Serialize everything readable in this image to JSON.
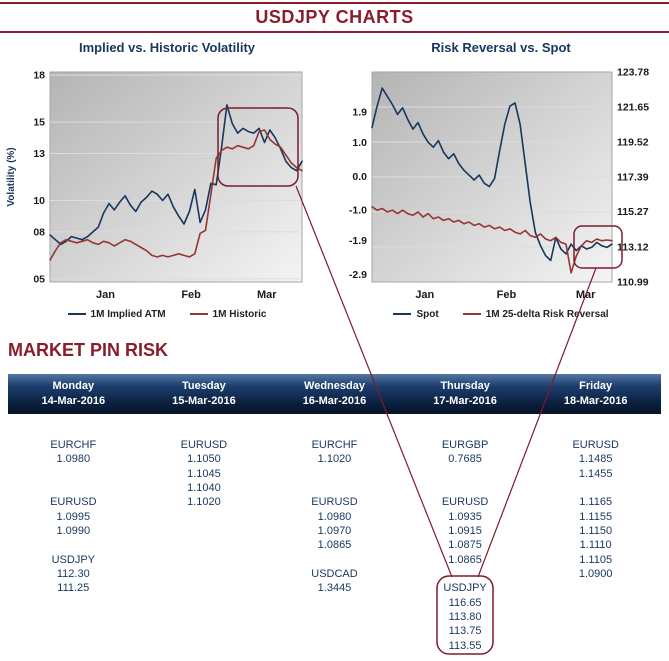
{
  "title": "USDJPY CHARTS",
  "colors": {
    "maroon": "#8a1c2c",
    "navy": "#17375e",
    "line_blue": "#17375e",
    "line_red": "#943634",
    "annotation": "#7d1c2e"
  },
  "chart_data": [
    {
      "type": "line",
      "title": "Implied vs. Historic Volatility",
      "ylabel": "Volatility (%)",
      "xlabel": "",
      "axes": {
        "left": {
          "lim": [
            4.8,
            18.2
          ],
          "tick_values": [
            18,
            15,
            13,
            10,
            8,
            5
          ],
          "tick_labels": [
            "18",
            "15",
            "13",
            "10",
            "08",
            "05"
          ]
        }
      },
      "gridline_axis": "left",
      "grid": true,
      "legend_position": "bottom",
      "x_ticks": {
        "labels": [
          "Jan",
          "Feb",
          "Mar"
        ],
        "fracs": [
          0.22,
          0.56,
          0.86
        ]
      },
      "series": [
        {
          "name": "1M Implied ATM",
          "axis": "left",
          "color": "#17375e",
          "values": [
            7.8,
            7.5,
            7.2,
            7.4,
            7.7,
            7.6,
            7.5,
            7.7,
            8.0,
            8.3,
            9.2,
            9.8,
            9.4,
            9.9,
            10.3,
            9.7,
            9.3,
            9.9,
            10.2,
            10.6,
            10.4,
            10.0,
            10.4,
            9.6,
            9.0,
            8.5,
            9.3,
            10.7,
            8.6,
            9.4,
            11.1,
            11.0,
            13.4,
            16.1,
            14.9,
            14.3,
            14.6,
            14.4,
            14.3,
            14.6,
            13.7,
            14.5,
            14.0,
            13.3,
            12.5,
            12.1,
            11.9,
            12.5
          ]
        },
        {
          "name": "1M Historic",
          "axis": "left",
          "color": "#943634",
          "values": [
            6.2,
            6.8,
            7.3,
            7.5,
            7.4,
            7.3,
            7.4,
            7.5,
            7.3,
            7.2,
            7.4,
            7.3,
            7.1,
            7.3,
            7.5,
            7.4,
            7.2,
            7.0,
            6.8,
            6.5,
            6.4,
            6.5,
            6.4,
            6.5,
            6.6,
            6.5,
            6.4,
            6.6,
            7.9,
            8.1,
            10.4,
            12.7,
            13.2,
            13.4,
            13.3,
            13.5,
            13.4,
            13.3,
            13.5,
            14.4,
            14.5,
            13.9,
            13.6,
            13.4,
            12.9,
            12.4,
            12.1,
            11.9
          ]
        }
      ]
    },
    {
      "type": "line",
      "title": "Risk Reversal vs. Spot",
      "ylabel": "",
      "xlabel": "",
      "axes": {
        "left": {
          "lim": [
            -3.12,
            3.08
          ],
          "tick_values": [
            1.9,
            1.0,
            0.0,
            -1.0,
            -1.9,
            -2.9
          ],
          "tick_labels": [
            "1.9",
            "1.0",
            "0.0",
            "-1.0",
            "-1.9",
            "-2.9"
          ]
        },
        "right": {
          "lim": [
            110.99,
            123.78
          ],
          "tick_values": [
            123.78,
            121.65,
            119.52,
            117.39,
            115.27,
            113.12,
            110.99
          ],
          "tick_labels": [
            "123.78",
            "121.65",
            "119.52",
            "117.39",
            "115.27",
            "113.12",
            "110.99"
          ]
        }
      },
      "gridline_axis": "right",
      "grid": true,
      "legend_position": "bottom",
      "x_ticks": {
        "labels": [
          "Jan",
          "Feb",
          "Mar"
        ],
        "fracs": [
          0.22,
          0.56,
          0.89
        ]
      },
      "series": [
        {
          "name": "Spot",
          "axis": "right",
          "color": "#17375e",
          "values": [
            120.4,
            121.7,
            122.8,
            122.3,
            121.8,
            121.2,
            121.6,
            120.9,
            120.3,
            120.7,
            120.0,
            119.5,
            119.2,
            119.6,
            118.9,
            118.5,
            118.8,
            118.2,
            117.8,
            117.5,
            117.2,
            117.5,
            117.0,
            116.8,
            117.3,
            119.0,
            120.6,
            121.7,
            121.9,
            120.6,
            118.2,
            115.8,
            114.0,
            113.2,
            112.6,
            112.3,
            113.7,
            113.0,
            112.7,
            113.3,
            112.9,
            113.2,
            113.0,
            113.1,
            113.4,
            113.2,
            113.1,
            113.3
          ]
        },
        {
          "name": "1M 25-delta Risk Reversal",
          "axis": "left",
          "color": "#943634",
          "values": [
            -0.9,
            -1.0,
            -0.95,
            -1.05,
            -1.0,
            -1.1,
            -1.0,
            -1.1,
            -1.15,
            -1.05,
            -1.2,
            -1.1,
            -1.25,
            -1.2,
            -1.3,
            -1.25,
            -1.35,
            -1.3,
            -1.4,
            -1.35,
            -1.45,
            -1.4,
            -1.5,
            -1.45,
            -1.55,
            -1.5,
            -1.6,
            -1.55,
            -1.65,
            -1.7,
            -1.6,
            -1.75,
            -1.8,
            -1.7,
            -1.85,
            -1.9,
            -1.8,
            -1.95,
            -2.0,
            -2.85,
            -2.35,
            -2.05,
            -1.9,
            -1.95,
            -1.85,
            -1.9,
            -1.88,
            -1.9
          ]
        }
      ]
    }
  ],
  "pin_risk": {
    "heading": "MARKET PIN RISK",
    "columns": [
      {
        "day": "Monday",
        "date": "14-Mar-2016",
        "lines": [
          "EURCHF",
          "1.0980",
          "",
          "",
          "EURUSD",
          "1.0995",
          "1.0990",
          "",
          "USDJPY",
          "112.30",
          "111.25",
          "",
          "",
          "",
          ""
        ]
      },
      {
        "day": "Tuesday",
        "date": "15-Mar-2016",
        "lines": [
          "EURUSD",
          "1.1050",
          "1.1045",
          "1.1040",
          "1.1020",
          "",
          "",
          "",
          "",
          "",
          "",
          "",
          "",
          "",
          ""
        ]
      },
      {
        "day": "Wednesday",
        "date": "16-Mar-2016",
        "lines": [
          "EURCHF",
          "1.1020",
          "",
          "",
          "EURUSD",
          "1.0980",
          "1.0970",
          "1.0865",
          "",
          "USDCAD",
          "1.3445",
          "",
          "",
          "",
          ""
        ]
      },
      {
        "day": "Thursday",
        "date": "17-Mar-2016",
        "lines": [
          "EURGBP",
          "0.7685",
          "",
          "",
          "EURUSD",
          "1.0935",
          "1.0915",
          "1.0875",
          "1.0865",
          "",
          "USDJPY",
          "116.65",
          "113.80",
          "113.75",
          "113.55"
        ]
      },
      {
        "day": "Friday",
        "date": "18-Mar-2016",
        "lines": [
          "EURUSD",
          "1.1485",
          "1.1455",
          "",
          "1.1165",
          "1.1155",
          "1.1150",
          "1.1110",
          "1.1105",
          "1.0900",
          "",
          "",
          "",
          "",
          ""
        ]
      }
    ]
  }
}
